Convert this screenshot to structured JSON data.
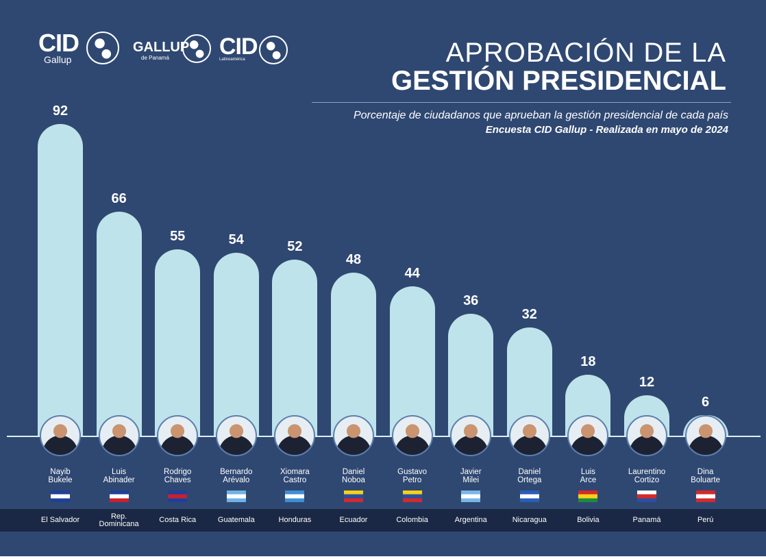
{
  "logos": [
    {
      "main": "CID",
      "sub": "Gallup"
    },
    {
      "main": "GALLUP",
      "sub": "de Panamá"
    },
    {
      "main": "CID",
      "sub": "Latinoamérica"
    }
  ],
  "chart_data": {
    "type": "bar",
    "title": "APROBACIÓN DE LA GESTIÓN PRESIDENCIAL",
    "title_line1": "APROBACIÓN DE LA",
    "title_line2": "GESTIÓN PRESIDENCIAL",
    "subtitle": "Porcentaje de ciudadanos que aprueban la gestión presidencial de cada país",
    "source": "Encuesta CID Gallup - Realizada en mayo de 2024",
    "ylim": [
      0,
      100
    ],
    "categories": [
      "Nayib Bukele",
      "Luis Abinader",
      "Rodrigo Chaves",
      "Bernardo Arévalo",
      "Xiomara Castro",
      "Daniel Noboa",
      "Gustavo Petro",
      "Javier Milei",
      "Daniel Ortega",
      "Luis Arce",
      "Laurentino Cortizo",
      "Dina Boluarte"
    ],
    "name_lines": [
      [
        "Nayib",
        "Bukele"
      ],
      [
        "Luis",
        "Abinader"
      ],
      [
        "Rodrigo",
        "Chaves"
      ],
      [
        "Bernardo",
        "Arévalo"
      ],
      [
        "Xiomara",
        "Castro"
      ],
      [
        "Daniel",
        "Noboa"
      ],
      [
        "Gustavo",
        "Petro"
      ],
      [
        "Javier",
        "Milei"
      ],
      [
        "Daniel",
        "Ortega"
      ],
      [
        "Luis",
        "Arce"
      ],
      [
        "Laurentino",
        "Cortizo"
      ],
      [
        "Dina",
        "Boluarte"
      ]
    ],
    "countries": [
      [
        "El Salvador"
      ],
      [
        "Rep.",
        "Dominicana"
      ],
      [
        "Costa Rica"
      ],
      [
        "Guatemala"
      ],
      [
        "Honduras"
      ],
      [
        "Ecuador"
      ],
      [
        "Colombia"
      ],
      [
        "Argentina"
      ],
      [
        "Nicaragua"
      ],
      [
        "Bolivia"
      ],
      [
        "Panamá"
      ],
      [
        "Perú"
      ]
    ],
    "flags": [
      [
        "#1f3f9a",
        "#ffffff",
        "#1f3f9a"
      ],
      [
        "#1f3f9a",
        "#ffffff",
        "#c8202f"
      ],
      [
        "#1f3f9a",
        "#c8202f",
        "#1f3f9a"
      ],
      [
        "#6fb3e6",
        "#ffffff",
        "#6fb3e6"
      ],
      [
        "#3e8fd6",
        "#ffffff",
        "#3e8fd6"
      ],
      [
        "#f5d218",
        "#2a4fa0",
        "#d42a2a"
      ],
      [
        "#f5d218",
        "#2a4fa0",
        "#d42a2a"
      ],
      [
        "#7ab6e8",
        "#ffffff",
        "#7ab6e8"
      ],
      [
        "#2a5db8",
        "#ffffff",
        "#2a5db8"
      ],
      [
        "#d42a2a",
        "#f5d218",
        "#1e8a3e"
      ],
      [
        "#ffffff",
        "#d42a2a",
        "#2a4fa0"
      ],
      [
        "#d42a2a",
        "#ffffff",
        "#d42a2a"
      ]
    ],
    "values": [
      92,
      66,
      55,
      54,
      52,
      48,
      44,
      36,
      32,
      18,
      12,
      6
    ]
  },
  "colors": {
    "background": "#2f4872",
    "bar": "#bfe3ea",
    "band": "#1b2845"
  }
}
